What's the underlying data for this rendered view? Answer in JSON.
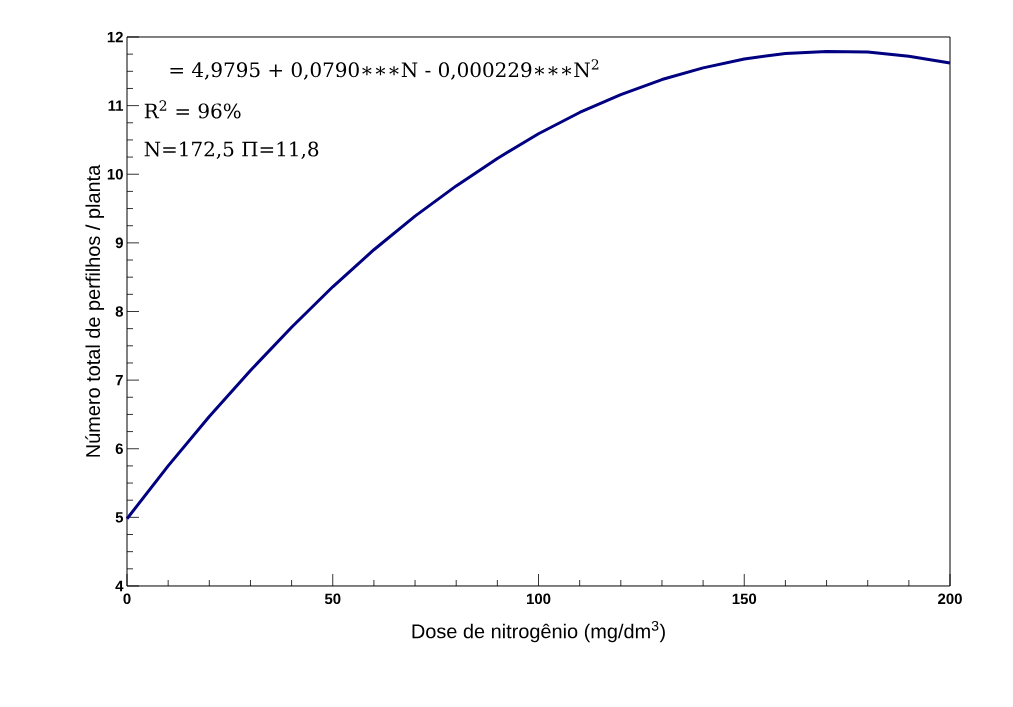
{
  "chart_data": {
    "type": "line",
    "xlabel": "Dose de nitrogênio (mg/dm$^{3}$)",
    "ylabel": "Número total de perfilhos / planta",
    "annotations": [
      "= 4,9795 + 0,0790∗∗∗N - 0,000229∗∗∗N$^{2}$",
      "R$^{2}$ = 96%",
      "N=172,5 Π=11,8"
    ],
    "x": [
      0,
      10,
      20,
      30,
      40,
      50,
      60,
      70,
      80,
      90,
      100,
      110,
      120,
      130,
      140,
      150,
      160,
      170,
      180,
      190,
      200
    ],
    "series": [
      {
        "color": "#000080",
        "values": [
          4.98,
          5.75,
          6.47,
          7.14,
          7.77,
          8.36,
          8.9,
          9.39,
          9.83,
          10.23,
          10.59,
          10.9,
          11.16,
          11.38,
          11.55,
          11.68,
          11.76,
          11.79,
          11.78,
          11.72,
          11.62
        ]
      }
    ],
    "xlim": [
      0,
      200
    ],
    "ylim": [
      4,
      12
    ],
    "xticks": [
      0,
      50,
      100,
      150,
      200
    ],
    "yticks": [
      4,
      5,
      6,
      7,
      8,
      9,
      10,
      11,
      12
    ],
    "grid": false,
    "marker": "none",
    "line_style": "solid"
  }
}
